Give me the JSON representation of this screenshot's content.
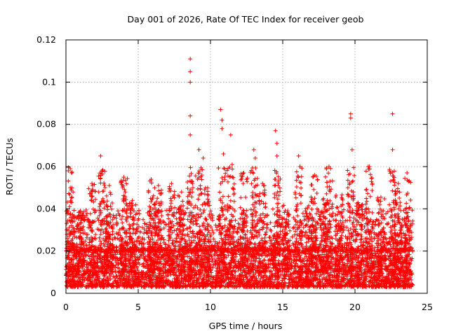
{
  "chart_data": {
    "type": "scatter",
    "title": "Day 001 of 2026, Rate Of TEC Index for receiver geob",
    "xlabel": "GPS time / hours",
    "ylabel": "ROTI / TECUs",
    "xlim": [
      0,
      25
    ],
    "ylim": [
      0,
      0.12
    ],
    "x_ticks": [
      0,
      5,
      10,
      15,
      20,
      25
    ],
    "x_tick_labels": [
      "0",
      "5",
      "10",
      "15",
      "20",
      "25"
    ],
    "y_ticks": [
      0,
      0.02,
      0.04,
      0.06,
      0.08,
      0.1,
      0.12
    ],
    "y_tick_labels": [
      "0",
      "0.02",
      "0.04",
      "0.06",
      "0.08",
      "0.1",
      "0.12"
    ],
    "grid": true,
    "marker": "+",
    "marker_color": "#ff0000",
    "series": [
      {
        "name": "ROTI",
        "description_points": "peak samples",
        "points": [
          {
            "x": 0.3,
            "y": 0.059
          },
          {
            "x": 0.3,
            "y": 0.05
          },
          {
            "x": 0.4,
            "y": 0.043
          },
          {
            "x": 1.0,
            "y": 0.039
          },
          {
            "x": 1.8,
            "y": 0.052
          },
          {
            "x": 2.4,
            "y": 0.065
          },
          {
            "x": 2.5,
            "y": 0.058
          },
          {
            "x": 3.0,
            "y": 0.051
          },
          {
            "x": 4.0,
            "y": 0.055
          },
          {
            "x": 4.1,
            "y": 0.048
          },
          {
            "x": 4.6,
            "y": 0.044
          },
          {
            "x": 5.9,
            "y": 0.054
          },
          {
            "x": 6.4,
            "y": 0.051
          },
          {
            "x": 7.3,
            "y": 0.052
          },
          {
            "x": 8.0,
            "y": 0.048
          },
          {
            "x": 8.6,
            "y": 0.111
          },
          {
            "x": 8.6,
            "y": 0.105
          },
          {
            "x": 8.6,
            "y": 0.1
          },
          {
            "x": 8.6,
            "y": 0.084
          },
          {
            "x": 8.6,
            "y": 0.075
          },
          {
            "x": 9.2,
            "y": 0.068
          },
          {
            "x": 9.5,
            "y": 0.064
          },
          {
            "x": 9.8,
            "y": 0.05
          },
          {
            "x": 10.7,
            "y": 0.087
          },
          {
            "x": 10.8,
            "y": 0.082
          },
          {
            "x": 10.8,
            "y": 0.078
          },
          {
            "x": 10.9,
            "y": 0.066
          },
          {
            "x": 11.4,
            "y": 0.075
          },
          {
            "x": 11.5,
            "y": 0.061
          },
          {
            "x": 12.3,
            "y": 0.057
          },
          {
            "x": 13.0,
            "y": 0.068
          },
          {
            "x": 13.1,
            "y": 0.064
          },
          {
            "x": 13.6,
            "y": 0.052
          },
          {
            "x": 14.5,
            "y": 0.077
          },
          {
            "x": 14.6,
            "y": 0.071
          },
          {
            "x": 14.6,
            "y": 0.065
          },
          {
            "x": 16.1,
            "y": 0.065
          },
          {
            "x": 16.2,
            "y": 0.06
          },
          {
            "x": 17.2,
            "y": 0.056
          },
          {
            "x": 18.2,
            "y": 0.06
          },
          {
            "x": 19.7,
            "y": 0.085
          },
          {
            "x": 19.7,
            "y": 0.083
          },
          {
            "x": 19.8,
            "y": 0.068
          },
          {
            "x": 21.0,
            "y": 0.06
          },
          {
            "x": 21.2,
            "y": 0.052
          },
          {
            "x": 22.6,
            "y": 0.085
          },
          {
            "x": 22.6,
            "y": 0.068
          },
          {
            "x": 23.0,
            "y": 0.052
          },
          {
            "x": 23.6,
            "y": 0.057
          },
          {
            "x": 23.7,
            "y": 0.053
          }
        ],
        "baseline_band": [
          0.003,
          0.02
        ],
        "typical_upper": 0.04,
        "activity_bursts_hours": [
          0.3,
          1.0,
          1.8,
          2.5,
          3.0,
          4.0,
          4.6,
          5.9,
          6.4,
          7.3,
          8.0,
          8.6,
          9.2,
          9.8,
          10.8,
          11.4,
          12.3,
          13.0,
          13.6,
          14.6,
          15.2,
          16.1,
          16.8,
          17.2,
          17.8,
          18.2,
          18.9,
          19.7,
          20.3,
          21.0,
          21.8,
          22.6,
          23.0,
          23.6
        ],
        "burst_heights": [
          0.06,
          0.04,
          0.052,
          0.065,
          0.051,
          0.055,
          0.044,
          0.054,
          0.051,
          0.052,
          0.048,
          0.111,
          0.068,
          0.05,
          0.087,
          0.075,
          0.057,
          0.068,
          0.052,
          0.077,
          0.042,
          0.065,
          0.044,
          0.056,
          0.045,
          0.06,
          0.047,
          0.085,
          0.043,
          0.06,
          0.046,
          0.085,
          0.052,
          0.057
        ]
      }
    ]
  }
}
